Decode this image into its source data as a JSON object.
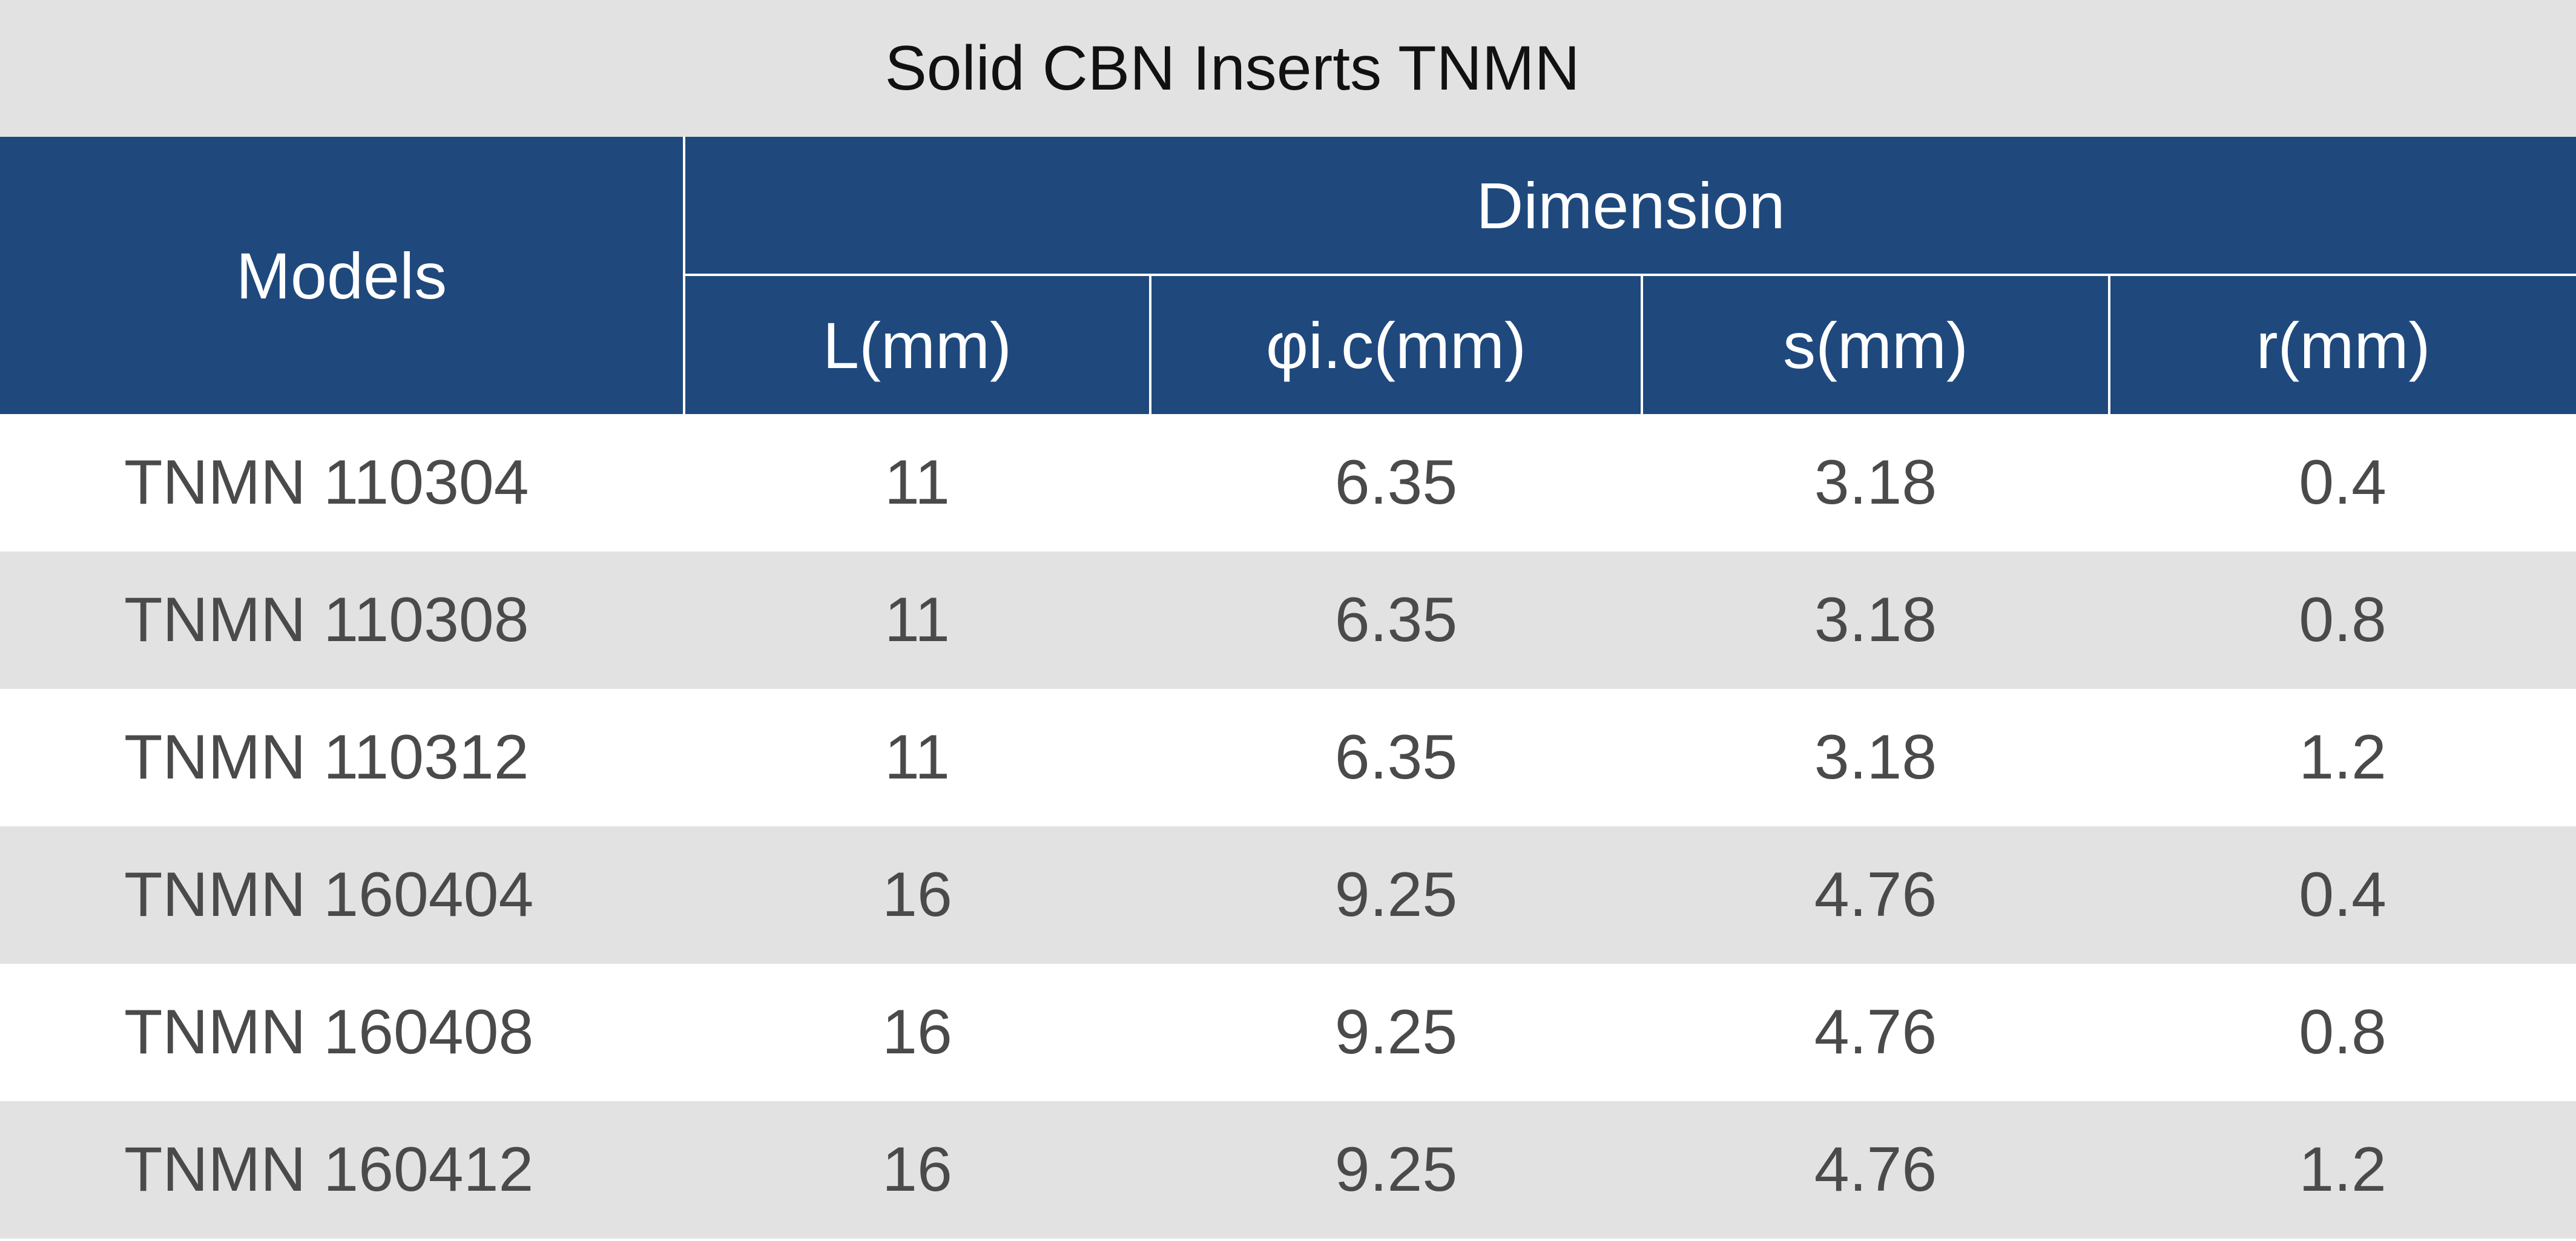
{
  "title": "Solid CBN Inserts TNMN",
  "header": {
    "models": "Models",
    "dimension": "Dimension",
    "columns": [
      "L(mm)",
      "φi.c(mm)",
      "s(mm)",
      "r(mm)"
    ]
  },
  "rows": [
    {
      "model": "TNMN 110304",
      "L": "11",
      "ic": "6.35",
      "s": "3.18",
      "r": "0.4"
    },
    {
      "model": "TNMN 110308",
      "L": "11",
      "ic": "6.35",
      "s": "3.18",
      "r": "0.8"
    },
    {
      "model": "TNMN 110312",
      "L": "11",
      "ic": "6.35",
      "s": "3.18",
      "r": "1.2"
    },
    {
      "model": "TNMN 160404",
      "L": "16",
      "ic": "9.25",
      "s": "4.76",
      "r": "0.4"
    },
    {
      "model": "TNMN 160408",
      "L": "16",
      "ic": "9.25",
      "s": "4.76",
      "r": "0.8"
    },
    {
      "model": "TNMN 160412",
      "L": "16",
      "ic": "9.25",
      "s": "4.76",
      "r": "1.2"
    }
  ],
  "colors": {
    "header_bg": "#1f497d",
    "title_bg": "#e2e2e2",
    "stripe_bg": "#e2e2e2",
    "text": "#4a4a4a"
  }
}
